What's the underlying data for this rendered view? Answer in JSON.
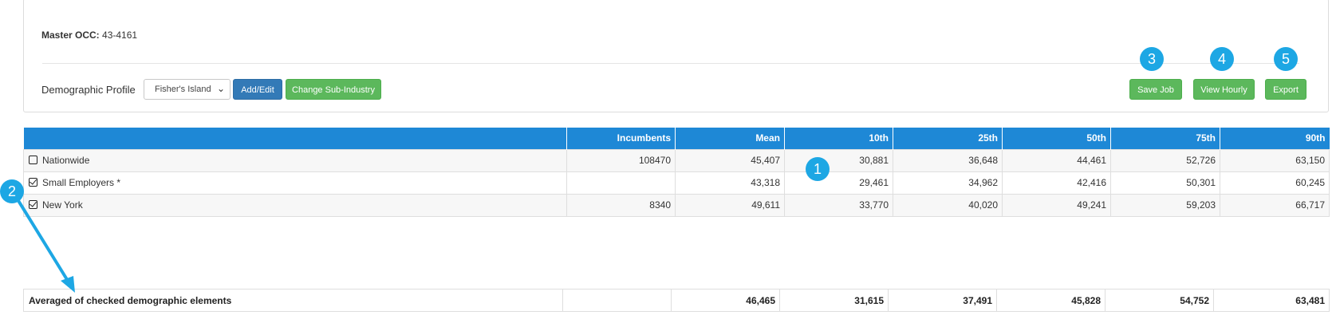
{
  "header": {
    "master_occ_label": "Master OCC:",
    "master_occ_value": "43-4161"
  },
  "toolbar": {
    "demographic_label": "Demographic Profile",
    "profile_select_value": "Fisher's Island",
    "add_edit_label": "Add/Edit",
    "change_sub_industry_label": "Change Sub-Industry",
    "save_job_label": "Save Job",
    "view_hourly_label": "View Hourly",
    "export_label": "Export"
  },
  "annotations": {
    "b1": "1",
    "b2": "2",
    "b3": "3",
    "b4": "4",
    "b5": "5"
  },
  "table": {
    "headers": [
      "",
      "Incumbents",
      "Mean",
      "10th",
      "25th",
      "50th",
      "75th",
      "90th"
    ],
    "rows": [
      {
        "name": "Nationwide",
        "checked": false,
        "values": [
          "108470",
          "45,407",
          "30,881",
          "36,648",
          "44,461",
          "52,726",
          "63,150"
        ]
      },
      {
        "name": "Small Employers *",
        "checked": true,
        "values": [
          "",
          "43,318",
          "29,461",
          "34,962",
          "42,416",
          "50,301",
          "60,245"
        ]
      },
      {
        "name": "New York",
        "checked": true,
        "values": [
          "8340",
          "49,611",
          "33,770",
          "40,020",
          "49,241",
          "59,203",
          "66,717"
        ]
      }
    ]
  },
  "average": {
    "label": "Averaged of checked demographic elements",
    "values": [
      "",
      "46,465",
      "31,615",
      "37,491",
      "45,828",
      "54,752",
      "63,481"
    ]
  },
  "colors": {
    "header_blue": "#1e88d6",
    "badge": "#1da7e4",
    "green": "#5cb85c",
    "blue": "#337ab7"
  }
}
